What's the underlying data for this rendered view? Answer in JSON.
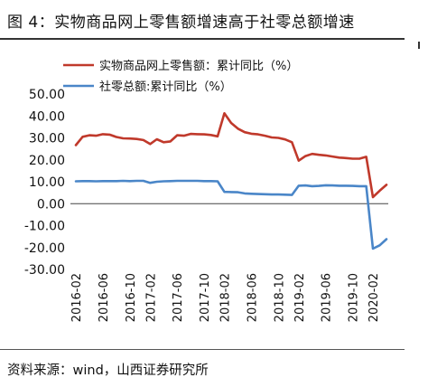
{
  "figure": {
    "title": "图 4：实物商品网上零售额增速高于社零总额增速",
    "source": "资料来源：wind，山西证券研究所"
  },
  "chart_data": {
    "type": "line",
    "title": "",
    "xlabel": "",
    "ylabel": "",
    "ylim": [
      -30,
      50
    ],
    "yticks": [
      "50.00",
      "40.00",
      "30.00",
      "20.00",
      "10.00",
      "0.00",
      "-10.00",
      "-20.00",
      "-30.00"
    ],
    "xtick_labels": [
      "2016-02",
      "2016-06",
      "2016-10",
      "2017-02",
      "2017-06",
      "2017-10",
      "2018-02",
      "2018-06",
      "2018-10",
      "2019-02",
      "2019-06",
      "2019-10",
      "2020-02"
    ],
    "x": [
      "2016-02",
      "2016-03",
      "2016-04",
      "2016-05",
      "2016-06",
      "2016-07",
      "2016-08",
      "2016-09",
      "2016-10",
      "2016-11",
      "2016-12",
      "2017-02",
      "2017-03",
      "2017-04",
      "2017-05",
      "2017-06",
      "2017-07",
      "2017-08",
      "2017-09",
      "2017-10",
      "2017-11",
      "2017-12",
      "2018-02",
      "2018-03",
      "2018-04",
      "2018-05",
      "2018-06",
      "2018-07",
      "2018-08",
      "2018-09",
      "2018-10",
      "2018-11",
      "2018-12",
      "2019-02",
      "2019-03",
      "2019-04",
      "2019-05",
      "2019-06",
      "2019-07",
      "2019-08",
      "2019-09",
      "2019-10",
      "2019-11",
      "2019-12",
      "2020-02",
      "2020-03",
      "2020-04"
    ],
    "legend_position": "top-left",
    "grid": false,
    "series": [
      {
        "name": "实物商品网上零售额：累计同比（%）",
        "color": "#c0392b",
        "values": [
          26.7,
          30.5,
          31.2,
          31.0,
          31.7,
          31.5,
          30.4,
          29.8,
          29.7,
          29.5,
          29.0,
          27.2,
          29.4,
          28.0,
          28.4,
          31.2,
          31.0,
          31.8,
          31.7,
          31.6,
          31.3,
          30.7,
          41.2,
          36.8,
          34.2,
          32.6,
          31.9,
          31.6,
          31.0,
          30.2,
          30.0,
          29.3,
          28.0,
          19.6,
          21.7,
          22.7,
          22.3,
          22.0,
          21.5,
          21.0,
          20.8,
          20.5,
          20.5,
          21.4,
          3.0,
          5.9,
          8.6
        ]
      },
      {
        "name": "社零总额:累计同比（%）",
        "color": "#4a86c8",
        "values": [
          10.2,
          10.3,
          10.3,
          10.2,
          10.3,
          10.3,
          10.3,
          10.4,
          10.3,
          10.4,
          10.4,
          9.5,
          10.0,
          10.2,
          10.3,
          10.4,
          10.4,
          10.4,
          10.4,
          10.3,
          10.3,
          10.2,
          5.4,
          5.3,
          5.2,
          4.7,
          4.5,
          4.4,
          4.3,
          4.2,
          4.2,
          4.1,
          4.0,
          8.2,
          8.3,
          8.0,
          8.1,
          8.4,
          8.3,
          8.2,
          8.2,
          8.1,
          8.0,
          8.0,
          -20.5,
          -19.0,
          -16.2
        ]
      }
    ]
  }
}
